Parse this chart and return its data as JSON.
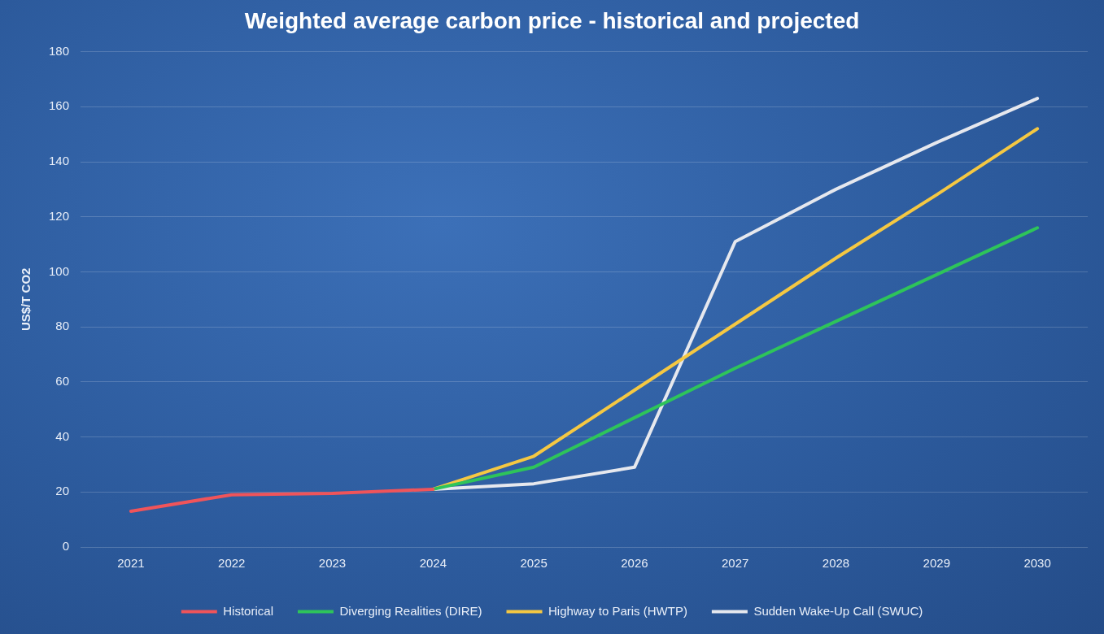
{
  "chart_data": {
    "type": "line",
    "title": "Weighted average carbon price - historical and projected",
    "ylabel": "US$/T CO2",
    "categories": [
      "2021",
      "2022",
      "2023",
      "2024",
      "2025",
      "2026",
      "2027",
      "2028",
      "2029",
      "2030"
    ],
    "series": [
      {
        "name": "Historical",
        "color": "#f0545a",
        "values": [
          13,
          19,
          19.5,
          21,
          null,
          null,
          null,
          null,
          null,
          null
        ]
      },
      {
        "name": "Diverging Realities (DIRE)",
        "color": "#2ec45a",
        "values": [
          null,
          null,
          null,
          21,
          29,
          47,
          65,
          82,
          99,
          116
        ]
      },
      {
        "name": "Highway to Paris (HWTP)",
        "color": "#f5c842",
        "values": [
          null,
          null,
          null,
          21,
          33,
          57,
          81,
          105,
          128,
          152
        ]
      },
      {
        "name": "Sudden Wake-Up Call (SWUC)",
        "color": "#e6e8ee",
        "values": [
          null,
          null,
          null,
          21,
          23,
          29,
          111,
          130,
          147,
          163
        ]
      }
    ],
    "ylim": [
      0,
      180
    ],
    "yticks": [
      0,
      20,
      40,
      60,
      80,
      100,
      120,
      140,
      160,
      180
    ],
    "grid": "y",
    "legend": "bottom"
  }
}
